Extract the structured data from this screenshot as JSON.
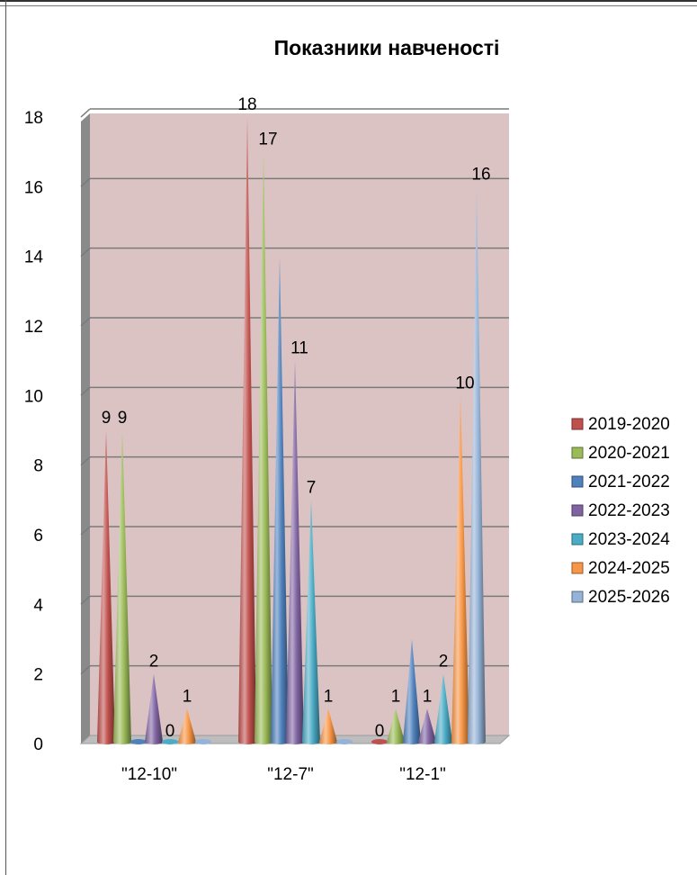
{
  "chart_data": {
    "type": "bar",
    "title": "Показники навченості",
    "categories": [
      "\"12-10\"",
      "\"12-7\"",
      "\"12-1\""
    ],
    "ylim": [
      0,
      18
    ],
    "yticks": [
      0,
      2,
      4,
      6,
      8,
      10,
      12,
      14,
      16,
      18
    ],
    "grid": true,
    "legend_position": "right",
    "series": [
      {
        "name": "2019-2020",
        "color": "#c0504d",
        "values": [
          9,
          18,
          0
        ]
      },
      {
        "name": "2020-2021",
        "color": "#9bbb59",
        "values": [
          9,
          17,
          1
        ]
      },
      {
        "name": "2021-2022",
        "color": "#4f81bd",
        "values": [
          0,
          14,
          3
        ]
      },
      {
        "name": "2022-2023",
        "color": "#8064a2",
        "values": [
          2,
          11,
          1
        ]
      },
      {
        "name": "2023-2024",
        "color": "#4bacc6",
        "values": [
          0,
          7,
          2
        ]
      },
      {
        "name": "2024-2025",
        "color": "#f79646",
        "values": [
          1,
          1,
          10
        ]
      },
      {
        "name": "2025-2026",
        "color": "#95b3d7",
        "values": [
          0,
          0,
          16
        ]
      }
    ],
    "data_labels": [
      {
        "category": 0,
        "series": 0,
        "text": "9"
      },
      {
        "category": 0,
        "series": 1,
        "text": "9"
      },
      {
        "category": 0,
        "series": 3,
        "text": "2"
      },
      {
        "category": 0,
        "series": 4,
        "text": "0"
      },
      {
        "category": 0,
        "series": 5,
        "text": "1"
      },
      {
        "category": 1,
        "series": 0,
        "text": "18"
      },
      {
        "category": 1,
        "series": 1,
        "text": "17"
      },
      {
        "category": 1,
        "series": 3,
        "text": "11"
      },
      {
        "category": 1,
        "series": 4,
        "text": "7"
      },
      {
        "category": 1,
        "series": 5,
        "text": "1"
      },
      {
        "category": 2,
        "series": 0,
        "text": "0"
      },
      {
        "category": 2,
        "series": 1,
        "text": "1"
      },
      {
        "category": 2,
        "series": 3,
        "text": "1"
      },
      {
        "category": 2,
        "series": 4,
        "text": "2"
      },
      {
        "category": 2,
        "series": 5,
        "text": "10"
      },
      {
        "category": 2,
        "series": 6,
        "text": "16"
      }
    ],
    "plot_background": "#dcc3c3"
  }
}
